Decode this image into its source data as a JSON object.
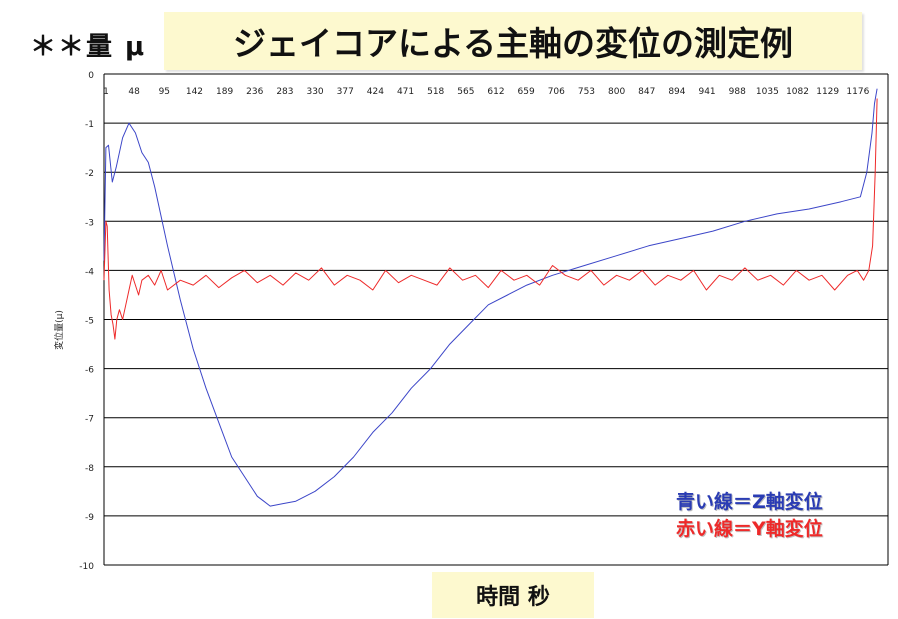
{
  "corner_label": "＊＊量 μ",
  "chart_data": {
    "type": "line",
    "title": "ジェイコアによる主軸の変位の測定例",
    "xlabel": "時間 秒",
    "ylabel": "変位量(μ)",
    "ylim": [
      -10,
      0
    ],
    "yticks": [
      0,
      -1,
      -2,
      -3,
      -4,
      -5,
      -6,
      -7,
      -8,
      -9,
      -10
    ],
    "xlim": [
      1,
      1223
    ],
    "x_tick_labels": [
      "1",
      "48",
      "95",
      "142",
      "189",
      "236",
      "283",
      "330",
      "377",
      "424",
      "471",
      "518",
      "565",
      "612",
      "659",
      "706",
      "753",
      "800",
      "847",
      "894",
      "941",
      "988",
      "1035",
      "1082",
      "1129",
      "1176"
    ],
    "grid": "horizontal",
    "series": [
      {
        "name": "Z軸変位",
        "color": "#3c46c8",
        "x": [
          1,
          4,
          8,
          14,
          20,
          30,
          40,
          50,
          60,
          70,
          80,
          90,
          100,
          120,
          140,
          160,
          180,
          200,
          220,
          240,
          250,
          260,
          280,
          300,
          330,
          360,
          390,
          420,
          450,
          480,
          510,
          540,
          570,
          600,
          630,
          660,
          700,
          750,
          800,
          850,
          900,
          950,
          1000,
          1050,
          1100,
          1150,
          1180,
          1190,
          1198,
          1202,
          1206
        ],
        "values": [
          -3.8,
          -1.5,
          -1.45,
          -2.2,
          -1.9,
          -1.3,
          -1.0,
          -1.2,
          -1.6,
          -1.8,
          -2.3,
          -2.9,
          -3.5,
          -4.6,
          -5.6,
          -6.4,
          -7.1,
          -7.8,
          -8.2,
          -8.6,
          -8.7,
          -8.8,
          -8.75,
          -8.7,
          -8.5,
          -8.2,
          -7.8,
          -7.3,
          -6.9,
          -6.4,
          -6.0,
          -5.5,
          -5.1,
          -4.7,
          -4.5,
          -4.3,
          -4.1,
          -3.9,
          -3.7,
          -3.5,
          -3.35,
          -3.2,
          -3.0,
          -2.85,
          -2.75,
          -2.6,
          -2.5,
          -2.0,
          -1.2,
          -0.6,
          -0.3
        ]
      },
      {
        "name": "Y軸変位",
        "color": "#ee2a2a",
        "x": [
          1,
          4,
          6,
          9,
          12,
          15,
          18,
          21,
          25,
          30,
          35,
          40,
          45,
          50,
          55,
          60,
          70,
          80,
          90,
          100,
          120,
          140,
          160,
          180,
          200,
          220,
          240,
          260,
          280,
          300,
          320,
          340,
          360,
          380,
          400,
          420,
          440,
          460,
          480,
          500,
          520,
          540,
          560,
          580,
          600,
          620,
          640,
          660,
          680,
          700,
          720,
          740,
          760,
          780,
          800,
          820,
          840,
          860,
          880,
          900,
          920,
          940,
          960,
          980,
          1000,
          1020,
          1040,
          1060,
          1080,
          1100,
          1120,
          1140,
          1160,
          1175,
          1185,
          1193,
          1199,
          1203,
          1206
        ],
        "values": [
          -4.2,
          -3.0,
          -3.1,
          -4.4,
          -4.9,
          -5.1,
          -5.4,
          -5.0,
          -4.8,
          -5.0,
          -4.7,
          -4.4,
          -4.1,
          -4.3,
          -4.5,
          -4.2,
          -4.1,
          -4.3,
          -4.0,
          -4.4,
          -4.2,
          -4.3,
          -4.1,
          -4.35,
          -4.15,
          -4.0,
          -4.25,
          -4.1,
          -4.3,
          -4.05,
          -4.2,
          -3.95,
          -4.3,
          -4.1,
          -4.2,
          -4.4,
          -4.0,
          -4.25,
          -4.1,
          -4.2,
          -4.3,
          -3.95,
          -4.2,
          -4.1,
          -4.35,
          -4.0,
          -4.2,
          -4.1,
          -4.3,
          -3.9,
          -4.1,
          -4.2,
          -4.0,
          -4.3,
          -4.1,
          -4.2,
          -4.0,
          -4.3,
          -4.1,
          -4.2,
          -4.0,
          -4.4,
          -4.1,
          -4.2,
          -3.95,
          -4.2,
          -4.1,
          -4.3,
          -4.0,
          -4.2,
          -4.1,
          -4.4,
          -4.1,
          -4.0,
          -4.2,
          -4.0,
          -3.5,
          -2.0,
          -0.5
        ]
      }
    ]
  },
  "legend": {
    "z_label": "青い線＝Z軸変位",
    "y_label": "赤い線＝Y軸変位",
    "z_color": "#2a3cb4",
    "y_color": "#ee2a2a"
  }
}
